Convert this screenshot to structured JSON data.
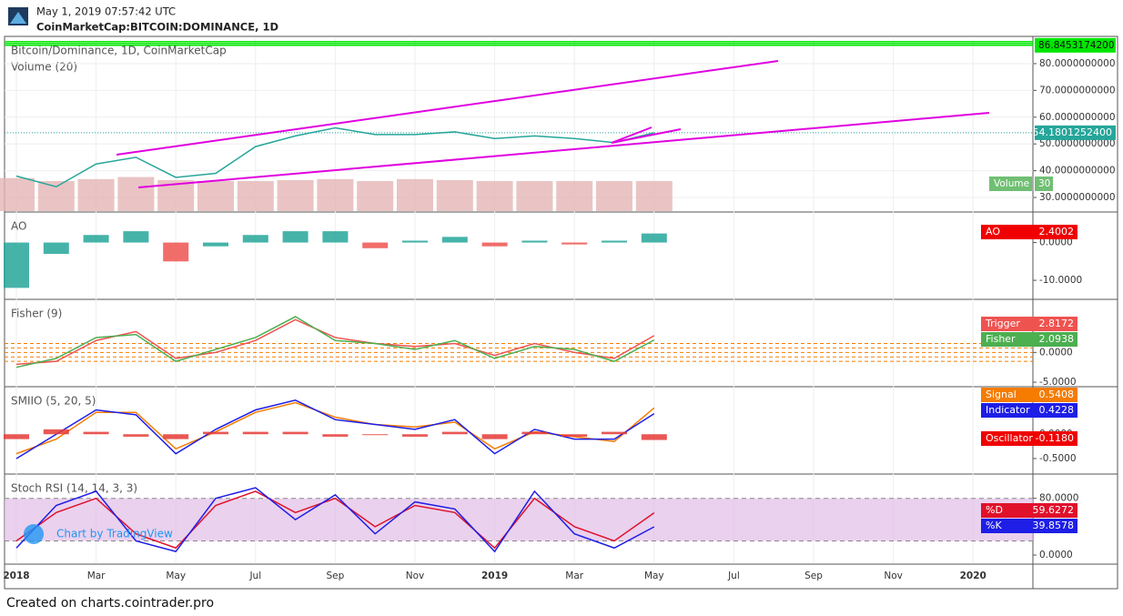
{
  "header": {
    "timestamp": "May 1, 2019 07:57:42 UTC",
    "symbol": "CoinMarketCap:BITCOIN:DOMINANCE, 1D"
  },
  "watermark": "Chart by TradingView",
  "footer": "Created on charts.cointrader.pro",
  "chart_data": [
    {
      "type": "line",
      "title": "Bitcoin/Dominance, 1D, CoinMarketCap",
      "subtitle": "Volume (20)",
      "categories": [
        "2018",
        null,
        "Mar",
        null,
        "May",
        null,
        "Jul",
        null,
        "Sep",
        null,
        "Nov",
        null,
        "2019",
        null,
        "Mar",
        null,
        "May",
        null,
        "Jul",
        null,
        "Sep",
        null,
        "Nov",
        null,
        "2020",
        null
      ],
      "ylim": [
        24.9,
        89.5
      ],
      "yticks": [
        {
          "value": 30,
          "label": "30.0000000000"
        },
        {
          "value": 40,
          "label": "40.0000000000"
        },
        {
          "value": 50,
          "label": "50.0000000000"
        },
        {
          "value": 60,
          "label": "60.0000000000"
        },
        {
          "value": 70,
          "label": "70.0000000000"
        },
        {
          "value": 80,
          "label": "80.0000000000"
        }
      ],
      "grid": true,
      "series": [
        {
          "color": "#26a69a",
          "values": [
            38,
            34,
            42.5,
            45,
            37.5,
            39,
            49,
            53,
            56,
            53.5,
            53.5,
            54.5,
            52,
            53,
            52,
            50.5,
            54.18012524,
            null,
            null,
            null,
            null,
            null,
            null,
            null,
            null,
            null
          ],
          "last": {
            "value": 54.18012524,
            "label": "54.1801252400"
          }
        }
      ],
      "volume": {
        "name": "Volume",
        "color": "#e5b5b5",
        "values": [
          33,
          30,
          32,
          34,
          31,
          30,
          30,
          31,
          32,
          30,
          32,
          31,
          30,
          30,
          30,
          30,
          30,
          null,
          null,
          null,
          null,
          null,
          null,
          null,
          null,
          null
        ],
        "last": 30
      },
      "price_line": {
        "value": 86.84531742,
        "label": "86.8453174200",
        "color": "#00e600"
      }
    },
    {
      "type": "bar",
      "title": "AO",
      "ylim": [
        -14.8,
        7.6
      ],
      "yticks": [
        {
          "value": 0,
          "label": "0.0000"
        },
        {
          "value": -10,
          "label": "-10.0000"
        }
      ],
      "series": [
        {
          "name": "AO",
          "style": "bars",
          "up_color": "#26a69a",
          "down_color": "#ef5350",
          "color": "#f00000",
          "values": [
            -12,
            -3,
            2,
            3,
            -5,
            -1,
            2,
            3,
            3,
            -1.5,
            0.5,
            1.5,
            -1,
            0.5,
            -0.5,
            0.5,
            2.4002,
            null,
            null,
            null,
            null,
            null,
            null,
            null,
            null,
            null
          ],
          "last": 2.4002
        }
      ]
    },
    {
      "type": "line",
      "title": "Fisher (9)",
      "ylim": [
        -5.6,
        8.6
      ],
      "yticks": [
        {
          "value": 0,
          "label": "0.0000"
        },
        {
          "value": -5,
          "label": "-5.0000"
        }
      ],
      "levels": [
        1.5,
        0.75,
        0,
        -0.75,
        -1.5
      ],
      "level_color": "#f57c00",
      "series": [
        {
          "name": "Trigger",
          "color": "#ef5350",
          "values": [
            -2,
            -1.5,
            2,
            3.5,
            -1,
            0,
            2,
            5.5,
            2.5,
            1.5,
            1,
            1.5,
            -0.5,
            1.5,
            0,
            -1,
            2.8172,
            null,
            null,
            null,
            null,
            null,
            null,
            null,
            null,
            null
          ],
          "last": 2.8172
        },
        {
          "name": "Fisher",
          "color": "#4caf50",
          "values": [
            -2.5,
            -1,
            2.5,
            3,
            -1.5,
            0.5,
            2.5,
            6,
            2,
            1.5,
            0.5,
            2,
            -1,
            1,
            0.5,
            -1.5,
            2.0938,
            null,
            null,
            null,
            null,
            null,
            null,
            null,
            null,
            null
          ],
          "last": 2.0938
        }
      ]
    },
    {
      "type": "line",
      "title": "SMIIO (5, 20, 5)",
      "ylim": [
        -0.8,
        0.94
      ],
      "yticks": [
        {
          "value": 0,
          "label": "0.0000"
        },
        {
          "value": -0.5,
          "label": "-0.5000"
        }
      ],
      "series": [
        {
          "name": "Signal",
          "color": "#f57c00",
          "values": [
            -0.4,
            -0.1,
            0.45,
            0.45,
            -0.3,
            0.05,
            0.45,
            0.65,
            0.35,
            0.2,
            0.15,
            0.25,
            -0.3,
            0.05,
            -0.05,
            -0.15,
            0.5408,
            null,
            null,
            null,
            null,
            null,
            null,
            null,
            null,
            null
          ],
          "last": 0.5408
        },
        {
          "name": "Indicator",
          "color": "#1e1ee6",
          "values": [
            -0.5,
            0,
            0.5,
            0.4,
            -0.4,
            0.1,
            0.5,
            0.7,
            0.3,
            0.2,
            0.1,
            0.3,
            -0.4,
            0.1,
            -0.1,
            -0.1,
            0.4228,
            null,
            null,
            null,
            null,
            null,
            null,
            null,
            null,
            null
          ],
          "last": 0.4228
        },
        {
          "name": "Oscillator",
          "style": "bars",
          "color": "#f00000",
          "up_color": "#e53935",
          "down_color": "#e53935",
          "values": [
            -0.1,
            0.1,
            0.05,
            -0.05,
            -0.1,
            0.05,
            0.05,
            0.05,
            -0.05,
            0,
            -0.05,
            0.05,
            -0.1,
            0.05,
            -0.05,
            0.05,
            -0.118,
            null,
            null,
            null,
            null,
            null,
            null,
            null,
            null,
            null
          ],
          "last": {
            "value": -0.118,
            "label": "-0.1180"
          }
        }
      ]
    },
    {
      "type": "line",
      "title": "Stoch RSI (14, 14, 3, 3)",
      "ylim": [
        -10.2,
        111.7
      ],
      "yticks": [
        {
          "value": 80,
          "label": "80.0000"
        },
        {
          "value": 0,
          "label": "0.0000"
        }
      ],
      "band": [
        20,
        80
      ],
      "band_color": "#e1bee7",
      "series": [
        {
          "name": "%D",
          "color": "#e0112b",
          "values": [
            20,
            60,
            80,
            30,
            10,
            70,
            90,
            60,
            80,
            40,
            70,
            60,
            10,
            80,
            40,
            20,
            59.6272,
            null,
            null,
            null,
            null,
            null,
            null,
            null,
            null,
            null
          ],
          "last": 59.6272
        },
        {
          "name": "%K",
          "color": "#1e1ee6",
          "values": [
            10,
            70,
            90,
            20,
            5,
            80,
            95,
            50,
            85,
            30,
            75,
            65,
            5,
            90,
            30,
            10,
            39.8578,
            null,
            null,
            null,
            null,
            null,
            null,
            null,
            null,
            null
          ],
          "last": 39.8578
        }
      ]
    }
  ]
}
